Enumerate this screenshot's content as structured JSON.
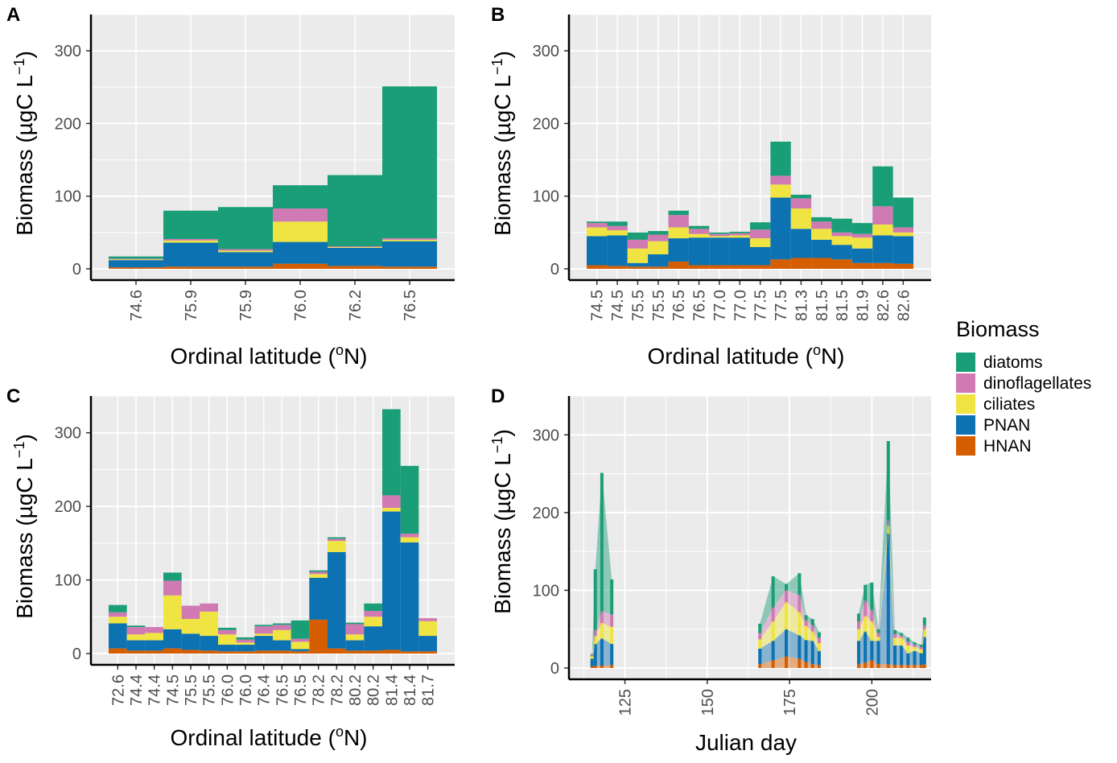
{
  "figure": {
    "colors": {
      "diatoms": "#1a9e77",
      "dinoflagellates": "#cf7ab3",
      "ciliates": "#f0e442",
      "PNAN": "#0c72b2",
      "HNAN": "#d55e00",
      "panel_bg": "#ebebeb",
      "grid": "#ffffff"
    },
    "legend": {
      "title": "Biomass",
      "items": [
        {
          "key": "diatoms",
          "label": "diatoms"
        },
        {
          "key": "dinoflagellates",
          "label": "dinoflagellates"
        },
        {
          "key": "ciliates",
          "label": "ciliates"
        },
        {
          "key": "PNAN",
          "label": "PNAN"
        },
        {
          "key": "HNAN",
          "label": "HNAN"
        }
      ]
    }
  },
  "chart_data": [
    {
      "panel": "A",
      "type": "bar",
      "stacked": true,
      "xlabel": "Ordinal latitude (°N)",
      "ylabel": "Biomass (µgC L⁻¹)",
      "ylim": [
        0,
        350
      ],
      "yticks": [
        0,
        100,
        200,
        300
      ],
      "categories": [
        "74.6",
        "75.9",
        "75.9",
        "76.0",
        "76.2",
        "76.5"
      ],
      "stack_order": [
        "HNAN",
        "PNAN",
        "ciliates",
        "dinoflagellates",
        "diatoms"
      ],
      "series": [
        {
          "name": "HNAN",
          "values": [
            2,
            3,
            3,
            7,
            4,
            3
          ]
        },
        {
          "name": "PNAN",
          "values": [
            10,
            33,
            20,
            30,
            25,
            35
          ]
        },
        {
          "name": "ciliates",
          "values": [
            1,
            3,
            2,
            28,
            1,
            2
          ]
        },
        {
          "name": "dinoflagellates",
          "values": [
            1,
            2,
            2,
            18,
            1,
            2
          ]
        },
        {
          "name": "diatoms",
          "values": [
            3,
            39,
            58,
            32,
            98,
            209
          ]
        }
      ]
    },
    {
      "panel": "B",
      "type": "bar",
      "stacked": true,
      "xlabel": "Ordinal latitude (°N)",
      "ylabel": "Biomass (µgC L⁻¹)",
      "ylim": [
        0,
        350
      ],
      "yticks": [
        0,
        100,
        200,
        300
      ],
      "categories": [
        "74.5",
        "74.5",
        "75.5",
        "75.5",
        "76.5",
        "76.5",
        "77.0",
        "77.0",
        "77.5",
        "77.5",
        "81.3",
        "81.5",
        "81.5",
        "81.9",
        "82.6",
        "82.6"
      ],
      "stack_order": [
        "HNAN",
        "PNAN",
        "ciliates",
        "dinoflagellates",
        "diatoms"
      ],
      "series": [
        {
          "name": "HNAN",
          "values": [
            5,
            4,
            3,
            3,
            10,
            5,
            5,
            5,
            5,
            13,
            15,
            15,
            13,
            8,
            8,
            7
          ]
        },
        {
          "name": "PNAN",
          "values": [
            40,
            42,
            5,
            17,
            32,
            38,
            38,
            38,
            25,
            85,
            40,
            25,
            20,
            20,
            38,
            38
          ]
        },
        {
          "name": "ciliates",
          "values": [
            12,
            7,
            20,
            18,
            15,
            5,
            2,
            3,
            12,
            18,
            28,
            15,
            12,
            15,
            15,
            5
          ]
        },
        {
          "name": "dinoflagellates",
          "values": [
            6,
            6,
            12,
            9,
            17,
            7,
            3,
            3,
            12,
            12,
            14,
            10,
            5,
            5,
            25,
            7
          ]
        },
        {
          "name": "diatoms",
          "values": [
            2,
            6,
            10,
            5,
            6,
            4,
            2,
            2,
            10,
            47,
            5,
            6,
            19,
            15,
            55,
            41
          ]
        }
      ]
    },
    {
      "panel": "C",
      "type": "bar",
      "stacked": true,
      "xlabel": "Ordinal latitude (°N)",
      "ylabel": "Biomass (µgC L⁻¹)",
      "ylim": [
        0,
        350
      ],
      "yticks": [
        0,
        100,
        200,
        300
      ],
      "categories": [
        "72.6",
        "74.4",
        "74.4",
        "74.5",
        "75.5",
        "75.5",
        "76.0",
        "76.0",
        "76.4",
        "76.5",
        "76.5",
        "78.2",
        "78.2",
        "80.2",
        "80.2",
        "81.4",
        "81.4",
        "81.7"
      ],
      "stack_order": [
        "HNAN",
        "PNAN",
        "ciliates",
        "dinoflagellates",
        "diatoms"
      ],
      "series": [
        {
          "name": "HNAN",
          "values": [
            7,
            4,
            4,
            7,
            5,
            4,
            3,
            3,
            4,
            4,
            3,
            46,
            7,
            4,
            4,
            5,
            3,
            3
          ]
        },
        {
          "name": "PNAN",
          "values": [
            34,
            14,
            14,
            26,
            22,
            20,
            9,
            9,
            20,
            14,
            3,
            57,
            131,
            14,
            33,
            188,
            148,
            21
          ]
        },
        {
          "name": "ciliates",
          "values": [
            9,
            8,
            10,
            46,
            20,
            33,
            14,
            3,
            3,
            14,
            10,
            5,
            15,
            8,
            13,
            5,
            7,
            20
          ]
        },
        {
          "name": "dinoflagellates",
          "values": [
            6,
            10,
            8,
            20,
            18,
            11,
            6,
            4,
            10,
            7,
            4,
            3,
            3,
            14,
            8,
            17,
            5,
            4
          ]
        },
        {
          "name": "diatoms",
          "values": [
            10,
            2,
            0,
            11,
            0,
            0,
            3,
            3,
            2,
            2,
            25,
            2,
            2,
            2,
            10,
            117,
            92,
            0
          ]
        }
      ]
    },
    {
      "panel": "D",
      "type": "area",
      "stacked": true,
      "xlabel": "Julian day",
      "ylabel": "Biomass (µgC L⁻¹)",
      "xlim": [
        108,
        218
      ],
      "ylim": [
        0,
        350
      ],
      "xticks": [
        125,
        150,
        175,
        200
      ],
      "yticks": [
        0,
        100,
        200,
        300
      ],
      "groups": [
        {
          "x": [
            115,
            116,
            118,
            121
          ],
          "series": [
            {
              "name": "HNAN",
              "values": [
                2,
                3,
                3,
                4
              ]
            },
            {
              "name": "PNAN",
              "values": [
                10,
                28,
                35,
                27
              ]
            },
            {
              "name": "ciliates",
              "values": [
                3,
                10,
                20,
                22
              ]
            },
            {
              "name": "dinoflagellates",
              "values": [
                2,
                8,
                15,
                16
              ]
            },
            {
              "name": "diatoms",
              "values": [
                1,
                78,
                178,
                45
              ]
            }
          ]
        },
        {
          "x": [
            166,
            170,
            174,
            178,
            180,
            182,
            184
          ],
          "series": [
            {
              "name": "HNAN",
              "values": [
                5,
                10,
                15,
                12,
                8,
                5,
                4
              ]
            },
            {
              "name": "PNAN",
              "values": [
                20,
                25,
                35,
                30,
                28,
                30,
                18
              ]
            },
            {
              "name": "ciliates",
              "values": [
                12,
                25,
                35,
                30,
                18,
                12,
                10
              ]
            },
            {
              "name": "dinoflagellates",
              "values": [
                8,
                18,
                15,
                22,
                8,
                8,
                7
              ]
            },
            {
              "name": "diatoms",
              "values": [
                12,
                40,
                8,
                28,
                6,
                8,
                7
              ]
            }
          ]
        },
        {
          "x": [
            196,
            198,
            200,
            202,
            205,
            207,
            209,
            211,
            213,
            215,
            216
          ],
          "series": [
            {
              "name": "HNAN",
              "values": [
                5,
                7,
                10,
                5,
                5,
                4,
                4,
                4,
                4,
                4,
                5
              ]
            },
            {
              "name": "PNAN",
              "values": [
                30,
                40,
                25,
                30,
                168,
                25,
                25,
                15,
                18,
                15,
                35
              ]
            },
            {
              "name": "ciliates",
              "values": [
                15,
                20,
                25,
                5,
                10,
                10,
                10,
                10,
                5,
                5,
                10
              ]
            },
            {
              "name": "dinoflagellates",
              "values": [
                10,
                20,
                15,
                5,
                7,
                5,
                3,
                5,
                3,
                3,
                5
              ]
            },
            {
              "name": "diatoms",
              "values": [
                10,
                20,
                35,
                5,
                102,
                5,
                3,
                5,
                3,
                3,
                10
              ]
            }
          ]
        }
      ]
    }
  ]
}
